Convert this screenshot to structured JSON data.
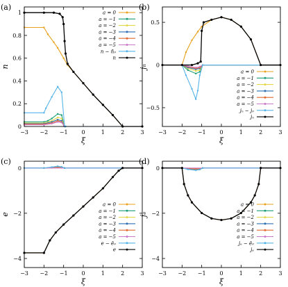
{
  "figure": {
    "legend_position": "right",
    "panels_grid": "2x2"
  },
  "chart_data": [
    {
      "id": "a",
      "type": "line",
      "panel_label": "(a)",
      "xlabel": "ξ",
      "ylabel": "n",
      "xlim": [
        -3,
        3
      ],
      "ylim": [
        0,
        1.05
      ],
      "xticks": [
        -3,
        -2,
        -1,
        0,
        1,
        2,
        3
      ],
      "xtick_labels": [
        "−3",
        "−2",
        "−1",
        "0",
        "1",
        "2",
        "3"
      ],
      "yticks": [
        0,
        0.2,
        0.4,
        0.6,
        0.8,
        1
      ],
      "ytick_labels": [
        "0",
        "0.2",
        "0.4",
        "0.6",
        "0.8",
        "1"
      ],
      "legend_position": "upper-right",
      "legend": [
        "a = 0",
        "a = −1",
        "a = −2",
        "a = −3",
        "a = −4",
        "a = −5",
        "n − n̄₀",
        "n"
      ],
      "series": [
        {
          "name": "a = 0",
          "color": "#e8a21c",
          "x": [
            -3,
            -2.0,
            -1.8,
            -1.5,
            -1.3,
            -1.0,
            -0.8,
            -0.5,
            0,
            0.5,
            1.0,
            1.5,
            2.0,
            3.0
          ],
          "y": [
            0.87,
            0.87,
            0.81,
            0.74,
            0.69,
            0.6,
            0.54,
            0.48,
            0.38,
            0.28,
            0.19,
            0.1,
            0.0,
            0.0
          ]
        },
        {
          "name": "a = −1",
          "color": "#1a9e77",
          "x": [
            -3,
            -2.0,
            -1.8,
            -1.6,
            -1.3,
            -1.1,
            -0.95,
            -0.9,
            3.0
          ],
          "y": [
            0.04,
            0.04,
            0.05,
            0.07,
            0.11,
            0.1,
            0.0,
            0.0,
            0.0
          ]
        },
        {
          "name": "a = −2",
          "color": "#e2d84a",
          "x": [
            -3,
            -2.0,
            -1.6,
            -1.3,
            -1.1,
            -0.95,
            3.0
          ],
          "y": [
            0.03,
            0.03,
            0.05,
            0.08,
            0.07,
            0.0,
            0.0
          ]
        },
        {
          "name": "a = −3",
          "color": "#2b6fb0",
          "x": [
            -3,
            -2.0,
            -1.6,
            -1.3,
            -1.1,
            -0.95,
            3.0
          ],
          "y": [
            0.025,
            0.025,
            0.04,
            0.06,
            0.05,
            0.0,
            0.0
          ]
        },
        {
          "name": "a = −4",
          "color": "#e36a2e",
          "x": [
            -3,
            -2.0,
            -1.6,
            -1.3,
            -1.1,
            -0.95,
            3.0
          ],
          "y": [
            0.02,
            0.02,
            0.03,
            0.05,
            0.04,
            0.0,
            0.0
          ]
        },
        {
          "name": "a = −5",
          "color": "#cc79c8",
          "x": [
            -3,
            -2.0,
            -1.6,
            -1.3,
            -1.1,
            -0.95,
            3.0
          ],
          "y": [
            0.015,
            0.015,
            0.025,
            0.04,
            0.035,
            0.0,
            0.0
          ]
        },
        {
          "name": "n − n̄₀",
          "color": "#56b4e9",
          "x": [
            -3,
            -2.0,
            -1.9,
            -1.6,
            -1.3,
            -1.1,
            -0.95,
            -0.9,
            3.0
          ],
          "y": [
            0.12,
            0.12,
            0.16,
            0.26,
            0.35,
            0.3,
            0.0,
            0.0,
            0.0
          ]
        },
        {
          "name": "n",
          "color": "#000000",
          "x": [
            -3,
            -2.0,
            -1.5,
            -1.2,
            -1.05,
            -1.0,
            -0.95,
            -0.9,
            -0.8,
            -0.5,
            0,
            0.5,
            1.0,
            1.5,
            2.0,
            3.0
          ],
          "y": [
            1.0,
            1.0,
            1.0,
            0.99,
            0.96,
            0.9,
            0.75,
            0.64,
            0.55,
            0.48,
            0.38,
            0.28,
            0.19,
            0.1,
            0.0,
            0.0
          ]
        }
      ]
    },
    {
      "id": "b",
      "type": "line",
      "panel_label": "(b)",
      "xlabel": "ξ",
      "ylabel": "jₙ",
      "xlim": [
        -3,
        3
      ],
      "ylim": [
        -0.72,
        0.68
      ],
      "xticks": [
        -3,
        -2,
        -1,
        0,
        1,
        2,
        3
      ],
      "xtick_labels": [
        "−3",
        "−2",
        "−1",
        "0",
        "1",
        "2",
        "3"
      ],
      "yticks": [
        -0.5,
        0,
        0.5
      ],
      "ytick_labels": [
        "−0.5",
        "0",
        "0.5"
      ],
      "legend_position": "lower-right",
      "legend": [
        "a = 0",
        "a = −1",
        "a = −2",
        "a = −3",
        "a = −4",
        "a = −5",
        "jₙ − j₀",
        "jₙ"
      ],
      "series": [
        {
          "name": "a = 0",
          "color": "#e8a21c",
          "x": [
            -3,
            -2.0,
            -1.8,
            -1.5,
            -1.2,
            -1.0,
            -0.5,
            0,
            0.5,
            1.0,
            1.5,
            2.0,
            3.0
          ],
          "y": [
            0.0,
            0.0,
            0.15,
            0.29,
            0.39,
            0.45,
            0.53,
            0.56,
            0.53,
            0.45,
            0.3,
            0.0,
            0.0
          ]
        },
        {
          "name": "a = −1",
          "color": "#1a9e77",
          "x": [
            -3,
            -2.0,
            -1.7,
            -1.3,
            -1.1,
            -0.95,
            3.0
          ],
          "y": [
            0.0,
            0.0,
            -0.06,
            -0.1,
            -0.08,
            0.0,
            0.0
          ]
        },
        {
          "name": "a = −2",
          "color": "#e2d84a",
          "x": [
            -3,
            -2.0,
            -1.7,
            -1.3,
            -1.1,
            -0.95,
            3.0
          ],
          "y": [
            0.0,
            0.0,
            -0.04,
            -0.07,
            -0.06,
            0.0,
            0.0
          ]
        },
        {
          "name": "a = −3",
          "color": "#2b6fb0",
          "x": [
            -3,
            -2.0,
            -1.7,
            -1.3,
            -1.1,
            -0.95,
            3.0
          ],
          "y": [
            0.0,
            0.0,
            -0.03,
            -0.05,
            -0.04,
            0.0,
            0.0
          ]
        },
        {
          "name": "a = −4",
          "color": "#e36a2e",
          "x": [
            -3,
            -2.0,
            -1.7,
            -1.3,
            -1.1,
            -0.95,
            3.0
          ],
          "y": [
            0.0,
            0.0,
            -0.02,
            -0.04,
            -0.03,
            0.0,
            0.0
          ]
        },
        {
          "name": "a = −5",
          "color": "#cc79c8",
          "x": [
            -3,
            -2.0,
            -1.7,
            -1.3,
            -1.1,
            -0.95,
            3.0
          ],
          "y": [
            0.0,
            0.0,
            -0.015,
            -0.03,
            -0.02,
            0.0,
            0.0
          ]
        },
        {
          "name": "jₙ − j₀",
          "color": "#56b4e9",
          "x": [
            -3,
            -2.0,
            -1.8,
            -1.5,
            -1.3,
            -1.2,
            -1.1,
            -0.95,
            3.0
          ],
          "y": [
            0.0,
            0.0,
            -0.12,
            -0.28,
            -0.4,
            -0.3,
            -0.12,
            0.0,
            0.0
          ]
        },
        {
          "name": "jₙ",
          "color": "#000000",
          "x": [
            -3,
            -2.0,
            -1.5,
            -1.2,
            -1.05,
            -1.0,
            -0.9,
            -0.5,
            0,
            0.5,
            1.0,
            1.5,
            2.0,
            3.0
          ],
          "y": [
            0.0,
            0.0,
            0.0,
            0.02,
            0.04,
            0.4,
            0.5,
            0.53,
            0.56,
            0.53,
            0.45,
            0.3,
            0.0,
            0.0
          ]
        }
      ]
    },
    {
      "id": "c",
      "type": "line",
      "panel_label": "(c)",
      "xlabel": "ξ",
      "ylabel": "e",
      "xlim": [
        -3,
        3
      ],
      "ylim": [
        -4.4,
        0.3
      ],
      "xticks": [
        -3,
        -2,
        -1,
        0,
        1,
        2,
        3
      ],
      "xtick_labels": [
        "−3",
        "−2",
        "−1",
        "0",
        "1",
        "2",
        "3"
      ],
      "yticks": [
        -4,
        -2,
        0
      ],
      "ytick_labels": [
        "−4",
        "−2",
        "0"
      ],
      "legend_position": "lower-right",
      "legend": [
        "a = 0",
        "a = −1",
        "a = −2",
        "a = −3",
        "a = −4",
        "a = −5",
        "e − ē₀",
        "e"
      ],
      "series": [
        {
          "name": "a = 0",
          "color": "#e8a21c",
          "x": [
            -3,
            -2.0,
            -1.7,
            -1.4,
            -1.0,
            -0.5,
            0,
            0.5,
            1.0,
            1.5,
            1.8,
            2.0,
            3.0
          ],
          "y": [
            -3.75,
            -3.75,
            -3.2,
            -2.85,
            -2.5,
            -2.1,
            -1.7,
            -1.3,
            -0.9,
            -0.4,
            -0.12,
            0.0,
            0.0
          ]
        },
        {
          "name": "a = −1",
          "color": "#1a9e77",
          "x": [
            -3,
            -2.0,
            -1.6,
            -1.3,
            -1.1,
            -0.95,
            3.0
          ],
          "y": [
            0.0,
            0.0,
            0.03,
            0.06,
            0.04,
            0.0,
            0.0
          ]
        },
        {
          "name": "a = −2",
          "color": "#e2d84a",
          "x": [
            -3,
            -2.0,
            -1.6,
            -1.3,
            -1.1,
            -0.95,
            3.0
          ],
          "y": [
            0.0,
            0.0,
            0.02,
            0.04,
            0.03,
            0.0,
            0.0
          ]
        },
        {
          "name": "a = −3",
          "color": "#2b6fb0",
          "x": [
            -3,
            -2.0,
            -1.6,
            -1.3,
            -1.1,
            -0.95,
            3.0
          ],
          "y": [
            0.0,
            0.0,
            0.015,
            0.03,
            0.02,
            0.0,
            0.0
          ]
        },
        {
          "name": "a = −4",
          "color": "#e36a2e",
          "x": [
            -3,
            -2.0,
            -1.6,
            -1.3,
            -1.1,
            -0.95,
            3.0
          ],
          "y": [
            0.0,
            0.0,
            0.01,
            0.02,
            0.015,
            0.0,
            0.0
          ]
        },
        {
          "name": "a = −5",
          "color": "#cc79c8",
          "x": [
            -3,
            3.0
          ],
          "y": [
            0.0,
            0.0
          ]
        },
        {
          "name": "e − ē₀",
          "color": "#56b4e9",
          "x": [
            -3,
            -2.0,
            -1.6,
            -1.3,
            -1.1,
            -0.95,
            3.0
          ],
          "y": [
            0.0,
            0.0,
            0.04,
            0.08,
            0.05,
            0.0,
            0.0
          ]
        },
        {
          "name": "e",
          "color": "#000000",
          "x": [
            -3,
            -2.0,
            -1.7,
            -1.4,
            -1.0,
            -0.5,
            0,
            0.5,
            1.0,
            1.5,
            1.8,
            2.0,
            3.0
          ],
          "y": [
            -3.75,
            -3.75,
            -3.2,
            -2.85,
            -2.5,
            -2.1,
            -1.7,
            -1.3,
            -0.9,
            -0.4,
            -0.12,
            0.0,
            0.0
          ]
        }
      ]
    },
    {
      "id": "d",
      "type": "line",
      "panel_label": "(d)",
      "xlabel": "ξ",
      "ylabel": "jₑ",
      "xlim": [
        -3,
        3
      ],
      "ylim": [
        -4.4,
        0.3
      ],
      "xticks": [
        -3,
        -2,
        -1,
        0,
        1,
        2,
        3
      ],
      "xtick_labels": [
        "−3",
        "−2",
        "−1",
        "0",
        "1",
        "2",
        "3"
      ],
      "yticks": [
        -4,
        -2,
        0
      ],
      "ytick_labels": [
        "−4",
        "−2",
        "0"
      ],
      "legend_position": "lower-right",
      "legend": [
        "a = 0",
        "a = −1",
        "a = −2",
        "a = −3",
        "a = −4",
        "a = −5",
        "jₑ − ē₀",
        "jₑ"
      ],
      "series": [
        {
          "name": "a = 0",
          "color": "#e8a21c",
          "x": [
            -3,
            -2.0,
            -1.9,
            -1.7,
            -1.5,
            -1.0,
            -0.5,
            0,
            0.5,
            1.0,
            1.5,
            1.7,
            1.9,
            2.0,
            3.0
          ],
          "y": [
            0.0,
            0.0,
            -0.71,
            -1.21,
            -1.52,
            -1.99,
            -2.23,
            -2.3,
            -2.23,
            -1.99,
            -1.52,
            -1.21,
            -0.71,
            0.0,
            0.0
          ]
        },
        {
          "name": "a = −1",
          "color": "#1a9e77",
          "x": [
            -3,
            -2.0,
            -1.7,
            -1.3,
            -1.1,
            -0.95,
            3.0
          ],
          "y": [
            0.0,
            0.0,
            -0.05,
            -0.08,
            -0.06,
            0.0,
            0.0
          ]
        },
        {
          "name": "a = −2",
          "color": "#e2d84a",
          "x": [
            -3,
            -2.0,
            -1.7,
            -1.3,
            -1.1,
            -0.95,
            3.0
          ],
          "y": [
            0.0,
            0.0,
            -0.04,
            -0.06,
            -0.05,
            0.0,
            0.0
          ]
        },
        {
          "name": "a = −3",
          "color": "#2b6fb0",
          "x": [
            -3,
            -2.0,
            -1.7,
            -1.3,
            -1.1,
            -0.95,
            3.0
          ],
          "y": [
            0.0,
            0.0,
            -0.03,
            -0.05,
            -0.04,
            0.0,
            0.0
          ]
        },
        {
          "name": "a = −4",
          "color": "#e36a2e",
          "x": [
            -3,
            -2.0,
            -1.7,
            -1.3,
            -1.1,
            -0.95,
            3.0
          ],
          "y": [
            0.0,
            0.0,
            -0.02,
            -0.04,
            -0.03,
            0.0,
            0.0
          ]
        },
        {
          "name": "a = −5",
          "color": "#cc79c8",
          "x": [
            -3,
            3.0
          ],
          "y": [
            0.0,
            0.0
          ]
        },
        {
          "name": "jₑ − ē₀",
          "color": "#56b4e9",
          "x": [
            -3,
            -2.0,
            -1.7,
            -1.3,
            -1.1,
            -0.95,
            3.0
          ],
          "y": [
            0.0,
            0.0,
            -0.06,
            -0.1,
            -0.07,
            0.0,
            0.0
          ]
        },
        {
          "name": "jₑ",
          "color": "#000000",
          "x": [
            -3,
            -2.0,
            -1.9,
            -1.7,
            -1.5,
            -1.0,
            -0.5,
            0,
            0.5,
            1.0,
            1.5,
            1.7,
            1.9,
            2.0,
            3.0
          ],
          "y": [
            0.0,
            0.0,
            -0.71,
            -1.21,
            -1.52,
            -1.99,
            -2.23,
            -2.3,
            -2.23,
            -1.99,
            -1.52,
            -1.21,
            -0.71,
            0.0,
            0.0
          ]
        }
      ]
    }
  ]
}
